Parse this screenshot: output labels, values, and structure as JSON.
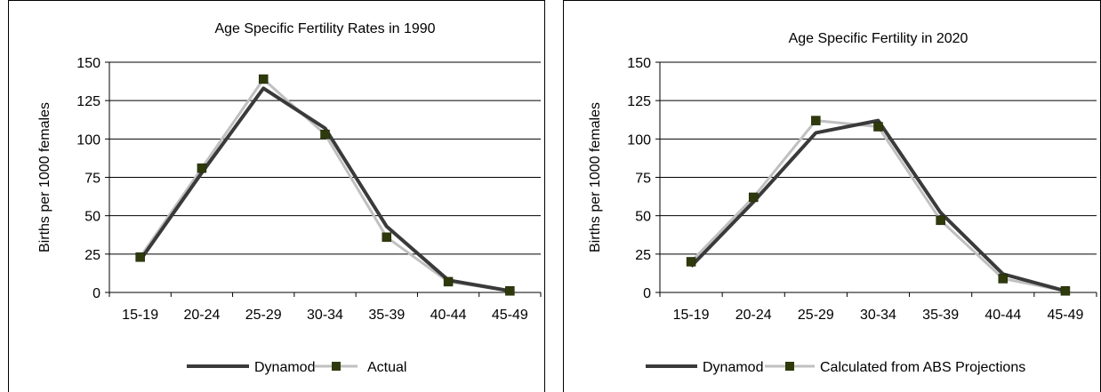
{
  "chart_data": [
    {
      "type": "line",
      "title": "Age Specific Fertility Rates in 1990",
      "xlabel": "",
      "ylabel": "Births per 1000 females",
      "categories": [
        "15-19",
        "20-24",
        "25-29",
        "30-34",
        "35-39",
        "40-44",
        "45-49"
      ],
      "ylim": [
        0,
        150
      ],
      "yticks": [
        "0",
        "25",
        "50",
        "75",
        "100",
        "125",
        "150"
      ],
      "grid": true,
      "legend_position": "bottom",
      "series": [
        {
          "name": "Dynamod",
          "values": [
            21,
            78,
            133,
            107,
            43,
            8,
            1
          ],
          "color": "#3a3a3a",
          "marker": "none"
        },
        {
          "name": "Actual",
          "values": [
            23,
            81,
            139,
            103,
            36,
            7,
            1
          ],
          "color": "#c0c0c0",
          "marker": "square",
          "marker_color": "#2e3a0b"
        }
      ]
    },
    {
      "type": "line",
      "title": "Age Specific Fertility in 2020",
      "xlabel": "",
      "ylabel": "Births per 1000 females",
      "categories": [
        "15-19",
        "20-24",
        "25-29",
        "30-34",
        "35-39",
        "40-44",
        "45-49"
      ],
      "ylim": [
        0,
        150
      ],
      "yticks": [
        "0",
        "25",
        "50",
        "75",
        "100",
        "125",
        "150"
      ],
      "grid": true,
      "legend_position": "bottom",
      "series": [
        {
          "name": "Dynamod",
          "values": [
            17,
            59,
            104,
            112,
            52,
            12,
            1
          ],
          "color": "#3a3a3a",
          "marker": "none"
        },
        {
          "name": "Calculated from ABS Projections",
          "values": [
            20,
            62,
            112,
            108,
            47,
            9,
            1
          ],
          "color": "#c0c0c0",
          "marker": "square",
          "marker_color": "#2e3a0b"
        }
      ]
    }
  ]
}
